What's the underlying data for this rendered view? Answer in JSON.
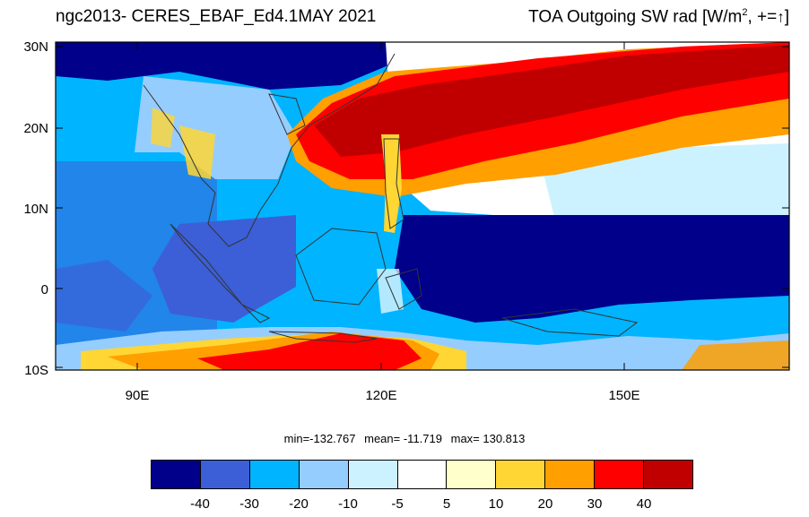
{
  "title": {
    "left": "ngc2013- CERES_EBAF_Ed4.1MAY 2021",
    "right_prefix": "TOA Outgoing SW rad [W/m",
    "right_sup": "2",
    "right_suffix": ", +=",
    "right_arrow": "↑",
    "right_close": "]"
  },
  "axes": {
    "lat_labels": [
      "30N",
      "20N",
      "10N",
      "0",
      "10S"
    ],
    "lon_labels": [
      "90E",
      "120E",
      "150E"
    ]
  },
  "stats": {
    "min": "min=-132.767",
    "mean": "mean= -11.719",
    "max": "max= 130.813"
  },
  "colorbar": {
    "colors": [
      "#00008b",
      "#3c5fd7",
      "#00b4ff",
      "#96cdff",
      "#ccf2ff",
      "#ffffff",
      "#ffffcc",
      "#ffd633",
      "#ff9f00",
      "#ff0000",
      "#c00000"
    ],
    "labels": [
      "-40",
      "-30",
      "-20",
      "-10",
      "-5",
      "5",
      "10",
      "20",
      "30",
      "40"
    ]
  },
  "map": {
    "type": "heatmap",
    "lon_range": [
      80,
      170
    ],
    "lat_range": [
      -10,
      30
    ],
    "colors": {
      "deep_blue": "#00008b",
      "mid_blue": "#3c5fd7",
      "light_blue": "#00b4ff",
      "pale_blue": "#96cdff",
      "white": "#ffffff",
      "yellow": "#ffd633",
      "orange": "#ff9f00",
      "red": "#ff0000",
      "dark_red": "#c00000",
      "coast": "#333333"
    }
  }
}
